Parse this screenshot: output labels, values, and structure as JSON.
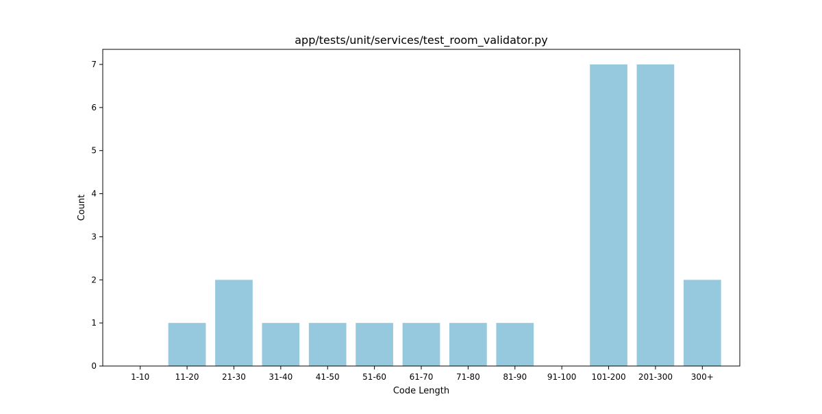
{
  "chart_data": {
    "type": "bar",
    "title": "app/tests/unit/services/test_room_validator.py",
    "xlabel": "Code Length",
    "ylabel": "Count",
    "categories": [
      "1-10",
      "11-20",
      "21-30",
      "31-40",
      "41-50",
      "51-60",
      "61-70",
      "71-80",
      "81-90",
      "91-100",
      "101-200",
      "201-300",
      "300+"
    ],
    "values": [
      0,
      1,
      2,
      1,
      1,
      1,
      1,
      1,
      1,
      0,
      7,
      7,
      2
    ],
    "ylim": [
      0,
      7.35
    ],
    "yticks": [
      0,
      1,
      2,
      3,
      4,
      5,
      6,
      7
    ],
    "grid": false,
    "bar_color": "#96c9de"
  }
}
